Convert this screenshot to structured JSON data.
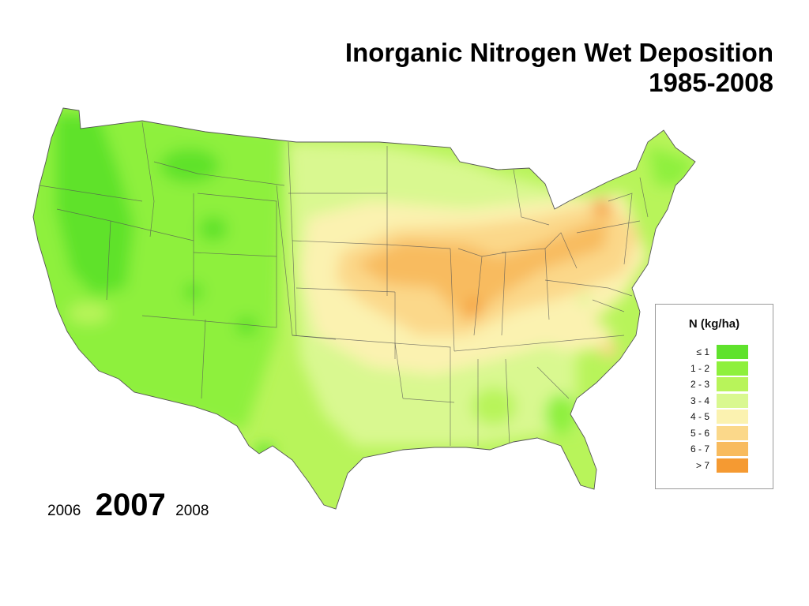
{
  "title": {
    "line1": "Inorganic Nitrogen Wet Deposition",
    "line2": "1985-2008"
  },
  "legend": {
    "title": "N  (kg/ha)",
    "classes": [
      {
        "label": "≤ 1",
        "color": "#5fe22c"
      },
      {
        "label": "1 - 2",
        "color": "#8ef03c"
      },
      {
        "label": "2 - 3",
        "color": "#b8f45a"
      },
      {
        "label": "3 - 4",
        "color": "#d9f890"
      },
      {
        "label": "4 - 5",
        "color": "#fbf2b0"
      },
      {
        "label": "5 - 6",
        "color": "#fbd88a"
      },
      {
        "label": "6 - 7",
        "color": "#f8bb5e"
      },
      {
        "label": "> 7",
        "color": "#f59a32"
      }
    ]
  },
  "years": {
    "previous": "2006",
    "current": "2007",
    "next": "2008"
  }
}
